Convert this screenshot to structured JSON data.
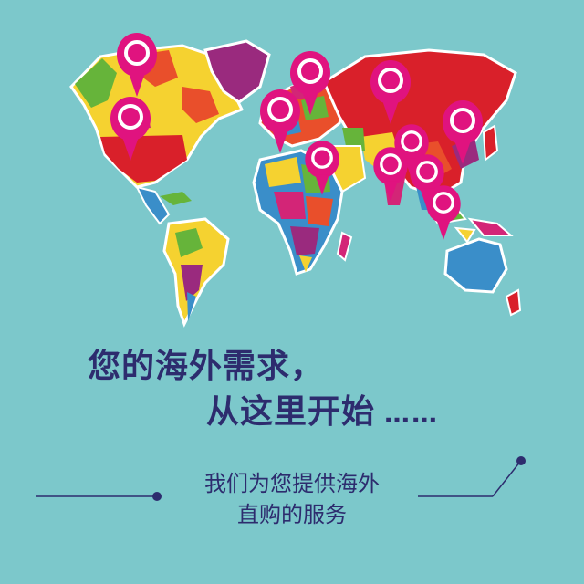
{
  "headline": {
    "line1": "您的海外需求，",
    "line2": "从这里开始",
    "ellipsis": "……"
  },
  "subtitle": {
    "line1": "我们为您提供海外",
    "line2": "直购的服务"
  },
  "colors": {
    "background": "#7cc8cb",
    "text": "#2d2c6e",
    "pin": "#e0137f"
  },
  "icons": [
    "map-pin-icon",
    "world-map-illustration"
  ]
}
